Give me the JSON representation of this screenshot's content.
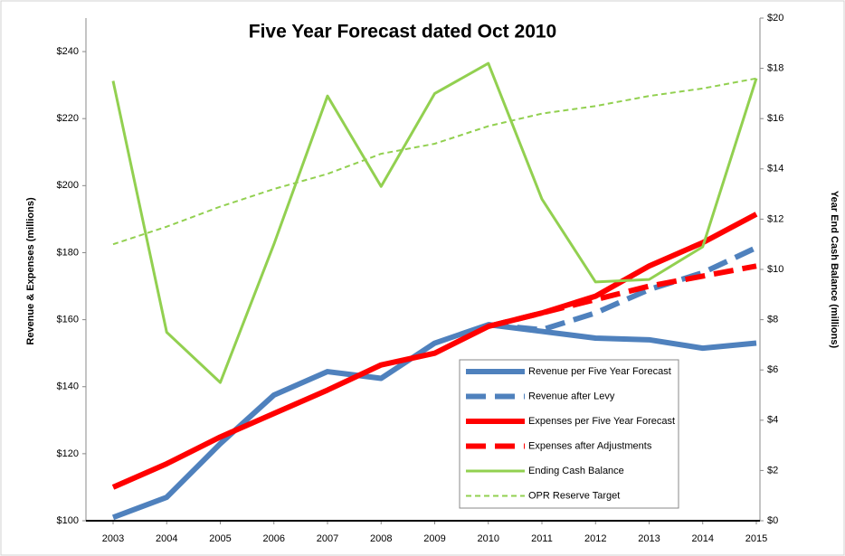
{
  "chart_data": {
    "type": "line",
    "title": "Five Year Forecast dated Oct 2010",
    "ylabel": "Revenue & Expenses (millions)",
    "y2label": "Year End Cash Balance (millions)",
    "categories": [
      "2003",
      "2004",
      "2005",
      "2006",
      "2007",
      "2008",
      "2009",
      "2010",
      "2011",
      "2012",
      "2013",
      "2014",
      "2015"
    ],
    "ylim": [
      100,
      250
    ],
    "yticks": [
      {
        "value": 100,
        "label": "$100"
      },
      {
        "value": 120,
        "label": "$120"
      },
      {
        "value": 140,
        "label": "$140"
      },
      {
        "value": 160,
        "label": "$160"
      },
      {
        "value": 180,
        "label": "$180"
      },
      {
        "value": 200,
        "label": "$200"
      },
      {
        "value": 220,
        "label": "$220"
      },
      {
        "value": 240,
        "label": "$240"
      }
    ],
    "y2lim": [
      0,
      20
    ],
    "y2ticks": [
      {
        "value": 0,
        "label": "$0"
      },
      {
        "value": 2,
        "label": "$2"
      },
      {
        "value": 4,
        "label": "$4"
      },
      {
        "value": 6,
        "label": "$6"
      },
      {
        "value": 8,
        "label": "$8"
      },
      {
        "value": 10,
        "label": "$10"
      },
      {
        "value": 12,
        "label": "$12"
      },
      {
        "value": 14,
        "label": "$14"
      },
      {
        "value": 16,
        "label": "$16"
      },
      {
        "value": 18,
        "label": "$18"
      },
      {
        "value": 20,
        "label": "$20"
      }
    ],
    "grid": false,
    "series": [
      {
        "name": "Revenue per Five Year Forecast",
        "color": "#4f81bd",
        "linestyle": "solid",
        "linewidth": 6,
        "values": [
          101,
          107,
          123,
          137.5,
          144.5,
          142.5,
          153,
          158.5,
          156.5,
          154.5,
          154,
          151.5,
          153
        ]
      },
      {
        "name": "Revenue after Levy",
        "color": "#4f81bd",
        "linestyle": "dashed",
        "linewidth": 6,
        "values": [
          null,
          null,
          null,
          null,
          null,
          null,
          null,
          158.5,
          157,
          162,
          169,
          174,
          181.5
        ]
      },
      {
        "name": "Expenses per Five Year Forecast",
        "color": "#ff0000",
        "linestyle": "solid",
        "linewidth": 6,
        "values": [
          110,
          117,
          125,
          132,
          139,
          146.5,
          150,
          158,
          162,
          167,
          176,
          183,
          191.5
        ]
      },
      {
        "name": "Expenses after Adjustments",
        "color": "#ff0000",
        "linestyle": "dashed",
        "linewidth": 6,
        "values": [
          null,
          null,
          null,
          null,
          null,
          null,
          null,
          158,
          162,
          166,
          170,
          173,
          176
        ]
      },
      {
        "name": "Ending Cash Balance",
        "color": "#92d050",
        "linestyle": "solid",
        "linewidth": 3,
        "axis": "y2",
        "values": [
          17.5,
          7.5,
          5.5,
          11,
          16.9,
          13.3,
          17,
          18.2,
          12.8,
          9.5,
          9.6,
          10.9,
          17.6
        ]
      },
      {
        "name": "OPR Reserve Target",
        "color": "#92d050",
        "linestyle": "dashed",
        "linewidth": 2,
        "axis": "y2",
        "values": [
          11,
          11.7,
          12.5,
          13.2,
          13.8,
          14.6,
          15,
          15.7,
          16.2,
          16.5,
          16.9,
          17.2,
          17.6
        ]
      }
    ]
  }
}
